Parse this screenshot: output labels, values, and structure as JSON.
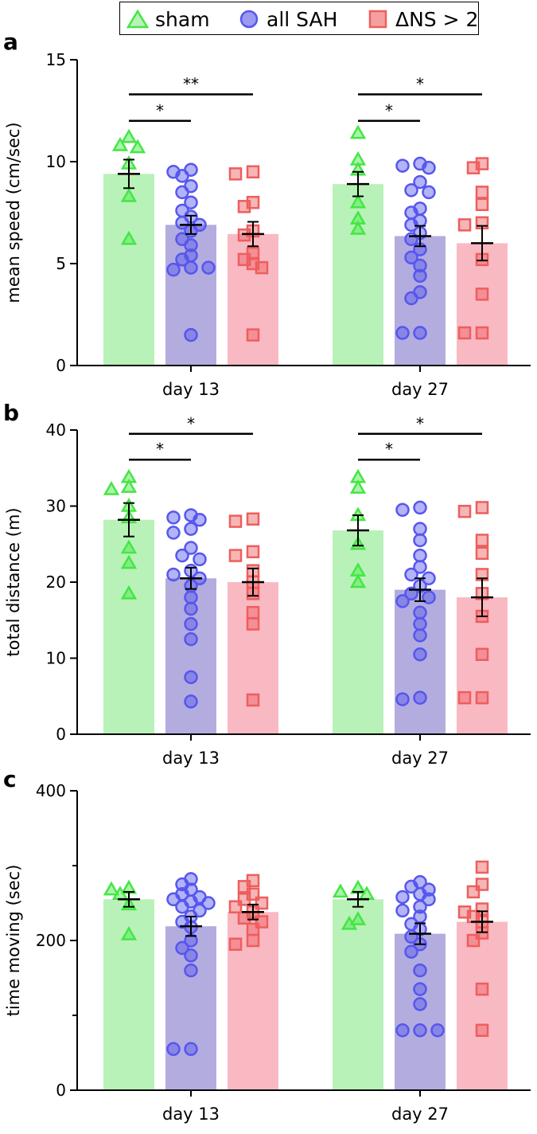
{
  "legend": {
    "sham": "sham",
    "all_sah": "all SAH",
    "ns": "ΔNS > 2"
  },
  "colors": {
    "sham_bar": "#b8f2b8",
    "sah_bar": "#b3acdf",
    "ns_bar": "#f9b9c3",
    "sham_marker": "#44e644",
    "sah_marker": "#5656ee",
    "ns_marker": "#ee5e5e"
  },
  "chart_data": [
    {
      "type": "bar",
      "panel_label": "a",
      "ylabel": "mean speed (cm/sec)",
      "ylim": [
        0,
        15
      ],
      "yticks": [
        0,
        5,
        10,
        15
      ],
      "categories": [
        "day 13",
        "day 27"
      ],
      "series": [
        {
          "name": "sham",
          "values": [
            9.4,
            8.9
          ],
          "sem": [
            0.7,
            0.6
          ],
          "points": [
            [
              11.2,
              10.8,
              10.7,
              9.9,
              8.3,
              6.2
            ],
            [
              11.4,
              10.1,
              9.6,
              8.0,
              7.2,
              6.7
            ]
          ]
        },
        {
          "name": "all SAH",
          "values": [
            6.9,
            6.35
          ],
          "sem": [
            0.45,
            0.5
          ],
          "points": [
            [
              9.6,
              9.5,
              9.3,
              8.8,
              8.5,
              8.0,
              7.6,
              7.3,
              7.0,
              6.9,
              6.6,
              6.2,
              5.9,
              5.4,
              5.2,
              4.8,
              4.7,
              4.8,
              1.5
            ],
            [
              9.9,
              9.8,
              9.7,
              9.0,
              8.6,
              8.5,
              7.7,
              7.5,
              7.1,
              6.9,
              6.5,
              6.2,
              5.7,
              5.3,
              4.9,
              4.4,
              3.6,
              3.3,
              1.6,
              1.6
            ]
          ]
        },
        {
          "name": "ΔNS > 2",
          "values": [
            6.45,
            6.0
          ],
          "sem": [
            0.6,
            0.85
          ],
          "points": [
            [
              9.5,
              9.4,
              8.0,
              7.8,
              6.6,
              6.4,
              5.5,
              5.2,
              5.0,
              4.8,
              1.5
            ],
            [
              9.9,
              9.7,
              8.5,
              7.9,
              7.0,
              6.9,
              5.2,
              3.5,
              1.6,
              1.6
            ]
          ]
        }
      ],
      "significance": [
        {
          "from": "sham",
          "to": "all SAH",
          "category": "day 13",
          "label": "*",
          "level": 12.0
        },
        {
          "from": "sham",
          "to": "ΔNS > 2",
          "category": "day 13",
          "label": "**",
          "level": 13.3
        },
        {
          "from": "sham",
          "to": "all SAH",
          "category": "day 27",
          "label": "*",
          "level": 12.0
        },
        {
          "from": "sham",
          "to": "ΔNS > 2",
          "category": "day 27",
          "label": "*",
          "level": 13.3
        }
      ]
    },
    {
      "type": "bar",
      "panel_label": "b",
      "ylabel": "total distance (m)",
      "ylim": [
        0,
        40
      ],
      "yticks": [
        0,
        10,
        20,
        30,
        40
      ],
      "categories": [
        "day 13",
        "day 27"
      ],
      "series": [
        {
          "name": "sham",
          "values": [
            28.2,
            26.8
          ],
          "sem": [
            2.2,
            2.0
          ],
          "points": [
            [
              33.8,
              32.5,
              32.2,
              30.0,
              28.5,
              24.5,
              22.5,
              18.5
            ],
            [
              33.8,
              32.4,
              28.8,
              25.0,
              21.5,
              20.0
            ]
          ]
        },
        {
          "name": "all SAH",
          "values": [
            20.5,
            19.0
          ],
          "sem": [
            1.4,
            1.5
          ],
          "points": [
            [
              28.8,
              28.5,
              28.2,
              27.0,
              26.5,
              24.5,
              23.5,
              23.0,
              21.5,
              21.0,
              20.5,
              19.5,
              18.0,
              16.5,
              14.5,
              12.5,
              7.5,
              4.3
            ],
            [
              29.8,
              29.5,
              27.0,
              25.5,
              23.5,
              22.0,
              21.0,
              20.5,
              19.5,
              18.5,
              18.0,
              17.5,
              16.0,
              14.5,
              13.0,
              10.5,
              4.8,
              4.6
            ]
          ]
        },
        {
          "name": "ΔNS > 2",
          "values": [
            20.0,
            18.0
          ],
          "sem": [
            1.8,
            2.5
          ],
          "points": [
            [
              28.3,
              28.0,
              24.0,
              23.5,
              21.5,
              20.0,
              18.5,
              16.0,
              14.5,
              4.5
            ],
            [
              29.8,
              29.3,
              25.5,
              23.8,
              21.0,
              18.5,
              15.5,
              10.5,
              4.8,
              4.8
            ]
          ]
        }
      ],
      "significance": [
        {
          "from": "sham",
          "to": "all SAH",
          "category": "day 13",
          "label": "*",
          "level": 36.1
        },
        {
          "from": "sham",
          "to": "ΔNS > 2",
          "category": "day 13",
          "label": "*",
          "level": 39.5
        },
        {
          "from": "sham",
          "to": "all SAH",
          "category": "day 27",
          "label": "*",
          "level": 36.1
        },
        {
          "from": "sham",
          "to": "ΔNS > 2",
          "category": "day 27",
          "label": "*",
          "level": 39.5
        }
      ]
    },
    {
      "type": "bar",
      "panel_label": "c",
      "ylabel": "time moving (sec)",
      "ylim": [
        0,
        400
      ],
      "yticks": [
        0,
        200,
        400
      ],
      "minor_yticks": [
        100,
        300
      ],
      "categories": [
        "day 13",
        "day 27"
      ],
      "series": [
        {
          "name": "sham",
          "values": [
            255,
            255
          ],
          "sem": [
            10,
            10
          ],
          "points": [
            [
              270,
              268,
              262,
              248,
              208
            ],
            [
              270,
              265,
              262,
              228,
              222
            ]
          ]
        },
        {
          "name": "all SAH",
          "values": [
            219,
            209
          ],
          "sem": [
            13,
            14
          ],
          "points": [
            [
              282,
              275,
              268,
              262,
              258,
              255,
              252,
              250,
              245,
              240,
              232,
              225,
              218,
              200,
              190,
              180,
              160,
              55,
              55
            ],
            [
              278,
              272,
              268,
              262,
              258,
              255,
              245,
              240,
              232,
              222,
              215,
              205,
              195,
              185,
              160,
              135,
              115,
              80,
              80,
              80
            ]
          ]
        },
        {
          "name": "ΔNS > 2",
          "values": [
            238,
            225
          ],
          "sem": [
            10,
            14
          ],
          "points": [
            [
              280,
              272,
              262,
              255,
              250,
              245,
              238,
              230,
              225,
              215,
              200,
              195
            ],
            [
              298,
              275,
              265,
              242,
              238,
              232,
              225,
              210,
              200,
              135,
              80
            ]
          ]
        }
      ],
      "significance": []
    }
  ]
}
